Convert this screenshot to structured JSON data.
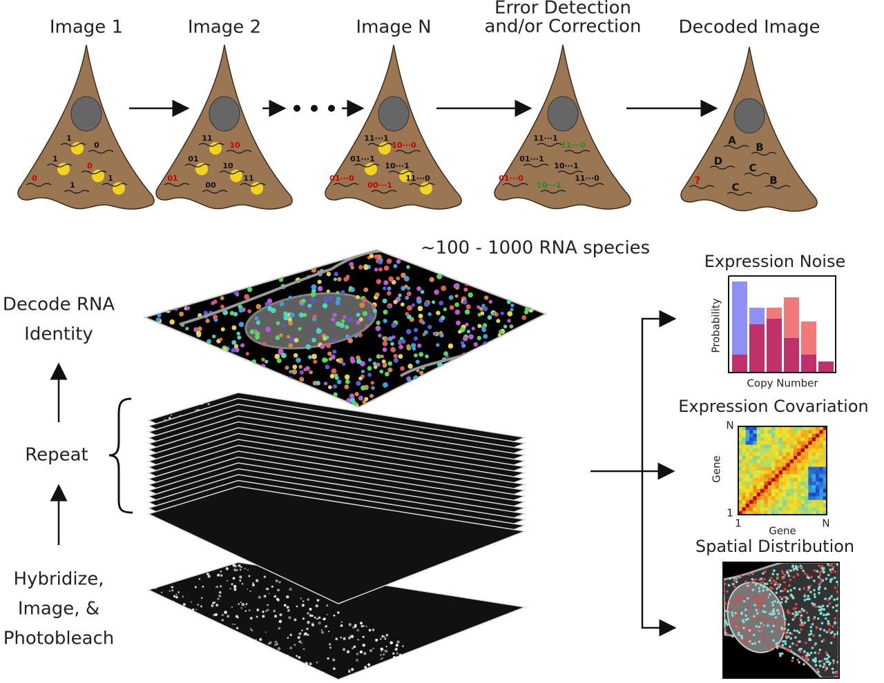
{
  "steps": [
    {
      "label": [
        "Image 1"
      ],
      "codes": [
        "1",
        "0",
        "1",
        "0",
        "0",
        "1",
        "1"
      ]
    },
    {
      "label": [
        "Image 2"
      ],
      "codes": [
        "11",
        "10",
        "01",
        "10",
        "01",
        "11",
        "00"
      ]
    },
    {
      "label": [
        "Image N"
      ],
      "codes": [
        "11···1",
        "10···0",
        "01···1",
        "10···1",
        "01···0",
        "11···0",
        "00···1"
      ]
    },
    {
      "label": [
        "Error Detection",
        "and/or Correction"
      ],
      "codes": [
        "11···1",
        "11···0",
        "01···1",
        "10···1",
        "01···0",
        "11···0",
        "10···1"
      ]
    },
    {
      "label": [
        "Decoded Image"
      ],
      "codes": [
        "A",
        "B",
        "D",
        "C",
        "?",
        "B",
        "C"
      ]
    }
  ],
  "species": "~100 - 1000 RNA species",
  "left": {
    "decode": [
      "Decode RNA",
      "Identity"
    ],
    "repeat": "Repeat",
    "hybridize": [
      "Hybridize,",
      "Image, &",
      "Photobleach"
    ]
  },
  "analyses": {
    "noise": {
      "title": "Expression Noise",
      "y_label": "Probability",
      "x_label": "Copy Number"
    },
    "covariation": {
      "title": "Expression Covariation",
      "y_label": "Gene",
      "x_label": "Gene",
      "y_top": "N",
      "y_bottom": "1",
      "x_left": "1",
      "x_right": "N"
    },
    "spatial": {
      "title": "Spatial Distribution"
    }
  }
}
